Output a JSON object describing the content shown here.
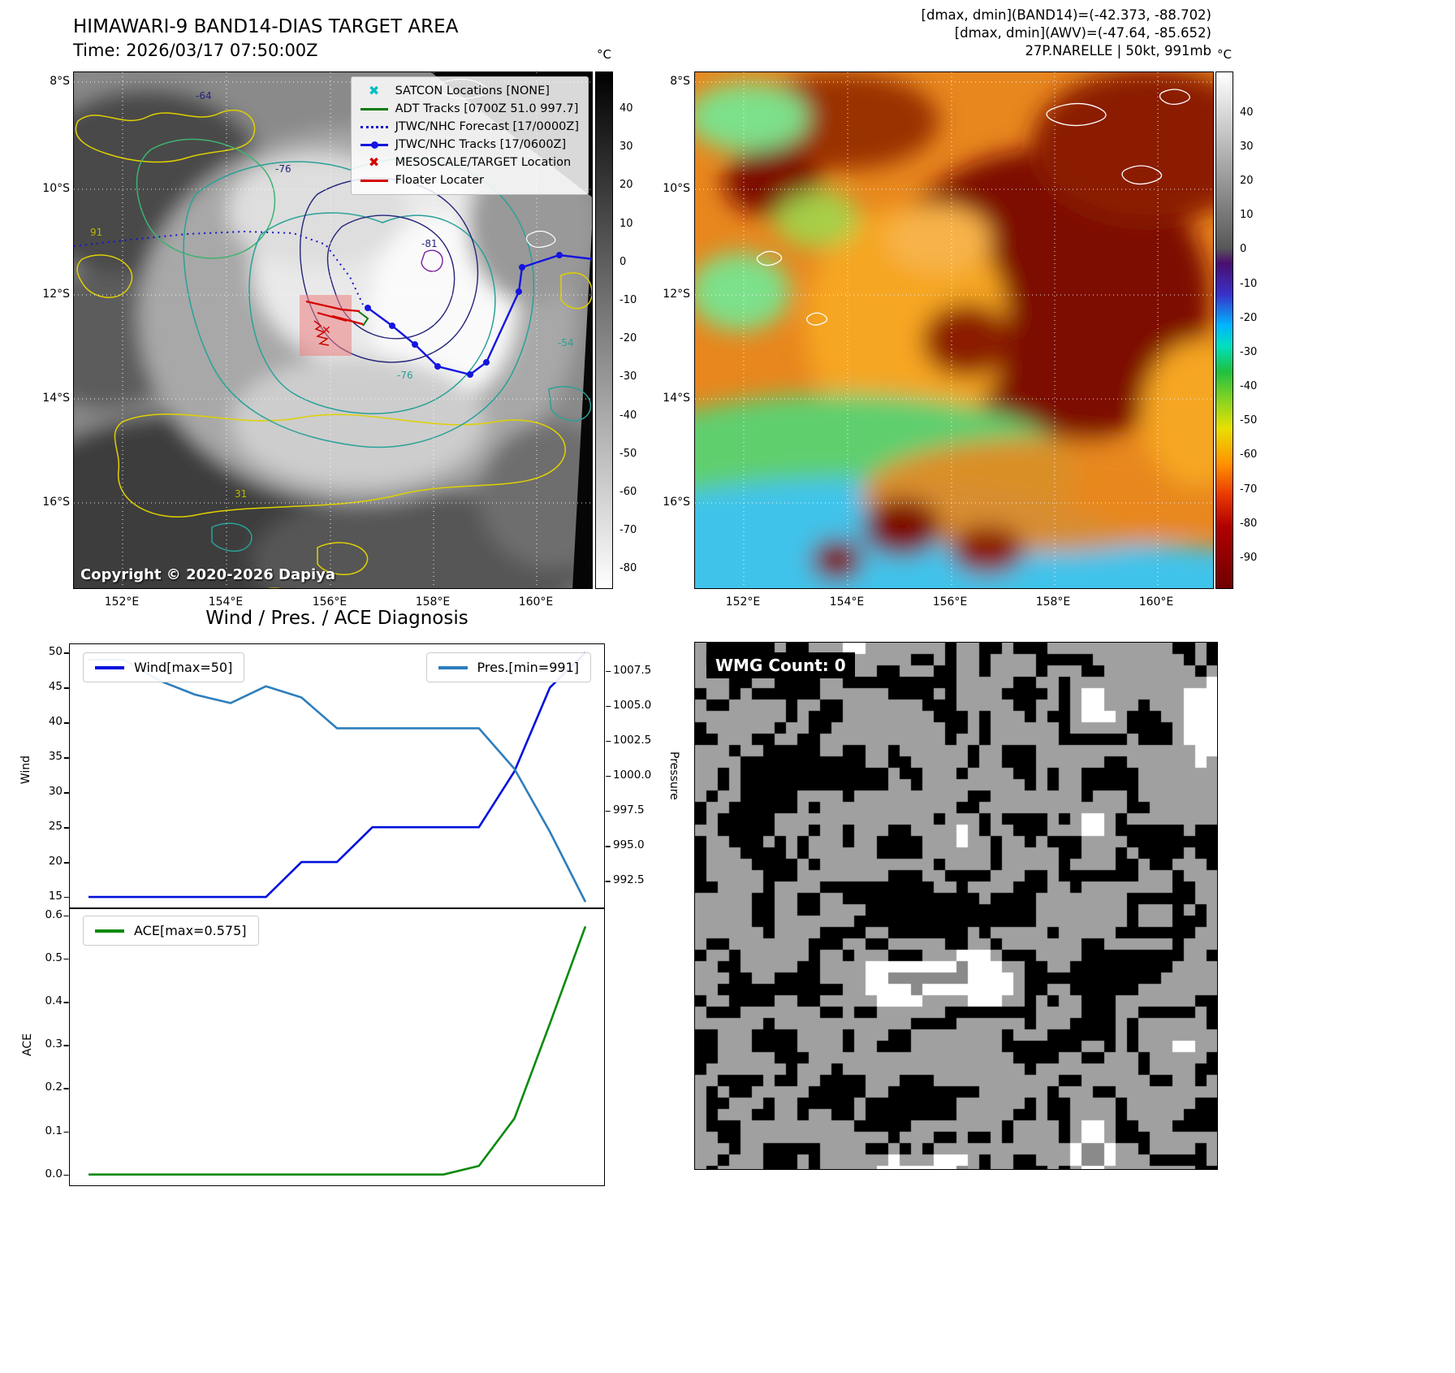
{
  "figure": {
    "title_line1": "HIMAWARI-9 BAND14-DIAS TARGET AREA",
    "title_line2": "Time: 2026/03/17 07:50:00Z",
    "diagnosis_title": "Wind / Pres. / ACE Diagnosis"
  },
  "panel_band14": {
    "copyright": "Copyright © 2020-2026 Dapiya",
    "colorbar": {
      "unit": "°C",
      "ticks": [
        "40",
        "30",
        "20",
        "10",
        "0",
        "-10",
        "-20",
        "-30",
        "-40",
        "-50",
        "-60",
        "-70",
        "-80"
      ]
    },
    "lat_ticks": [
      "8°S",
      "10°S",
      "12°S",
      "14°S",
      "16°S"
    ],
    "lon_ticks": [
      "152°E",
      "154°E",
      "156°E",
      "158°E",
      "160°E"
    ],
    "legend": [
      {
        "label": "SATCON Locations [NONE]",
        "color": "#00bfbf"
      },
      {
        "label": "ADT Tracks [0700Z 51.0 997.7]",
        "color": "#0a7a0a"
      },
      {
        "label": "JTWC/NHC Forecast [17/0000Z]",
        "color": "#1515cc"
      },
      {
        "label": "JTWC/NHC Tracks [17/0600Z]",
        "color": "#1515e0"
      },
      {
        "label": "MESOSCALE/TARGET Location",
        "color": "#d40000"
      },
      {
        "label": "Floater Locater",
        "color": "#d40000"
      }
    ],
    "contour_labels": [
      "-64",
      "-76",
      "-81",
      "91",
      "-54",
      "-76",
      "31"
    ]
  },
  "panel_awv": {
    "annotations": [
      "[dmax, dmin](BAND14)=(-42.373, -88.702)",
      "[dmax, dmin](AWV)=(-47.64, -85.652)",
      "27P.NARELLE | 50kt, 991mb"
    ],
    "colorbar": {
      "unit": "°C",
      "ticks": [
        "40",
        "30",
        "20",
        "10",
        "0",
        "-10",
        "-20",
        "-30",
        "-40",
        "-50",
        "-60",
        "-70",
        "-80",
        "-90"
      ]
    },
    "lat_ticks": [
      "8°S",
      "10°S",
      "12°S",
      "14°S",
      "16°S"
    ],
    "lon_ticks": [
      "152°E",
      "154°E",
      "156°E",
      "158°E",
      "160°E"
    ]
  },
  "panel_wmg": {
    "count_label": "WMG Count: 0"
  },
  "chart_data": [
    {
      "type": "line",
      "title": "Wind / Pres. / ACE Diagnosis",
      "x": [
        0,
        1,
        2,
        3,
        4,
        5,
        6,
        7,
        8,
        9,
        10,
        11,
        12,
        13,
        14
      ],
      "series": [
        {
          "name": "Wind",
          "legend": "Wind[max=50]",
          "axis": "left",
          "color": "#0010dd",
          "values": [
            15,
            15,
            15,
            15,
            15,
            15,
            20,
            20,
            25,
            25,
            25,
            25,
            33,
            45,
            50
          ]
        },
        {
          "name": "Pres.",
          "legend": "Pres.[min=991]",
          "axis": "right",
          "color": "#2e7ebc",
          "values": [
            1008.3,
            1008.3,
            1006.8,
            1005.8,
            1005.2,
            1006.4,
            1005.6,
            1003.4,
            1003.4,
            1003.4,
            1003.4,
            1003.4,
            1000.5,
            996.0,
            991.0
          ]
        }
      ],
      "ylabel_left": "Wind",
      "ylabel_right": "Pressure",
      "ylim_left": [
        13.5,
        51.2
      ],
      "ylim_right": [
        990.6,
        1009.4
      ],
      "yticks_left": [
        "15",
        "20",
        "25",
        "30",
        "35",
        "40",
        "45",
        "50"
      ],
      "yticks_right": [
        "992.5",
        "995.0",
        "997.5",
        "1000.0",
        "1002.5",
        "1005.0",
        "1007.5"
      ],
      "legend_position": "upper-left / upper-right",
      "grid": false
    },
    {
      "type": "line",
      "x": [
        0,
        1,
        2,
        3,
        4,
        5,
        6,
        7,
        8,
        9,
        10,
        11,
        12,
        13,
        14
      ],
      "series": [
        {
          "name": "ACE",
          "legend": "ACE[max=0.575]",
          "axis": "left",
          "color": "#0a8a0a",
          "values": [
            0,
            0,
            0,
            0,
            0,
            0,
            0,
            0,
            0,
            0,
            0,
            0.02,
            0.13,
            0.35,
            0.575
          ]
        }
      ],
      "ylabel_left": "ACE",
      "ylim_left": [
        -0.025,
        0.615
      ],
      "yticks_left": [
        "0.0",
        "0.1",
        "0.2",
        "0.3",
        "0.4",
        "0.5",
        "0.6"
      ],
      "legend_position": "upper-left",
      "grid": false
    }
  ]
}
